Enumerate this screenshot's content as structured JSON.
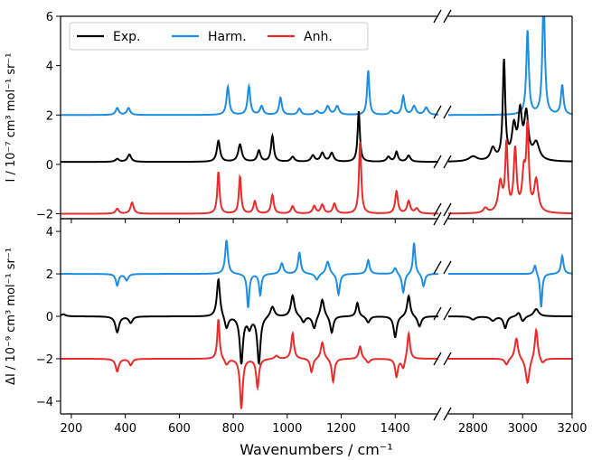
{
  "chart_data": [
    {
      "type": "line",
      "panel": "top",
      "ylabel": "I / 10⁻⁷ cm³ mol⁻¹ sr⁻¹",
      "ylim": [
        -2.2,
        6
      ],
      "yticks": [
        -2,
        0,
        2,
        4,
        6
      ],
      "xlabel": "",
      "xticks_low": [],
      "xticks_high": [],
      "legend": {
        "placement": "top-left",
        "entries": [
          "Exp.",
          "Harm.",
          "Anh."
        ]
      },
      "series": [
        {
          "name": "Harm.",
          "color": "#1f8ee0",
          "baseline": 2,
          "peaks": [
            [
              370,
              0.28,
              7
            ],
            [
              412,
              0.28,
              7
            ],
            [
              780,
              1.15,
              6
            ],
            [
              858,
              1.15,
              6
            ],
            [
              905,
              0.35,
              7
            ],
            [
              975,
              0.7,
              6
            ],
            [
              1045,
              0.25,
              7
            ],
            [
              1110,
              0.15,
              8
            ],
            [
              1150,
              0.35,
              8
            ],
            [
              1185,
              0.35,
              8
            ],
            [
              1300,
              1.8,
              5
            ],
            [
              1385,
              0.15,
              8
            ],
            [
              1430,
              0.75,
              6
            ],
            [
              1470,
              0.35,
              8
            ],
            [
              1515,
              0.3,
              8
            ],
            [
              3020,
              3.4,
              6
            ],
            [
              3085,
              4.8,
              6
            ],
            [
              3160,
              1.2,
              6
            ]
          ]
        },
        {
          "name": "Exp.",
          "color": "#000000",
          "baseline": 0.1,
          "peaks": [
            [
              370,
              0.12,
              8
            ],
            [
              415,
              0.3,
              8
            ],
            [
              745,
              0.85,
              7
            ],
            [
              825,
              0.7,
              8
            ],
            [
              895,
              0.45,
              7
            ],
            [
              945,
              1.05,
              6
            ],
            [
              1020,
              0.2,
              8
            ],
            [
              1095,
              0.25,
              8
            ],
            [
              1130,
              0.35,
              8
            ],
            [
              1165,
              0.35,
              8
            ],
            [
              1265,
              2.05,
              5
            ],
            [
              1375,
              0.2,
              8
            ],
            [
              1405,
              0.4,
              6
            ],
            [
              1450,
              0.25,
              8
            ],
            [
              2800,
              0.2,
              20
            ],
            [
              2880,
              0.5,
              12
            ],
            [
              2925,
              4.0,
              6
            ],
            [
              2965,
              1.3,
              10
            ],
            [
              2990,
              1.8,
              9
            ],
            [
              3015,
              1.8,
              10
            ],
            [
              3055,
              0.7,
              15
            ]
          ]
        },
        {
          "name": "Anh.",
          "color": "#e82c2c",
          "baseline": -2,
          "peaks": [
            [
              370,
              0.2,
              7
            ],
            [
              425,
              0.45,
              7
            ],
            [
              745,
              1.7,
              5
            ],
            [
              825,
              1.5,
              5
            ],
            [
              880,
              0.5,
              6
            ],
            [
              945,
              0.75,
              6
            ],
            [
              1020,
              0.3,
              7
            ],
            [
              1100,
              0.3,
              7
            ],
            [
              1130,
              0.35,
              7
            ],
            [
              1175,
              0.4,
              7
            ],
            [
              1270,
              2.9,
              5
            ],
            [
              1405,
              0.9,
              6
            ],
            [
              1450,
              0.5,
              7
            ],
            [
              1480,
              0.2,
              8
            ],
            [
              2850,
              0.2,
              10
            ],
            [
              2910,
              1.2,
              10
            ],
            [
              2935,
              2.7,
              6
            ],
            [
              2970,
              2.5,
              7
            ],
            [
              3005,
              1.5,
              8
            ],
            [
              3020,
              3.3,
              6
            ],
            [
              3055,
              1.3,
              10
            ]
          ]
        }
      ]
    },
    {
      "type": "line",
      "panel": "bottom",
      "ylabel": "ΔI / 10⁻⁹ cm³ mol⁻¹ sr⁻¹",
      "ylim": [
        -4.6,
        4.6
      ],
      "yticks": [
        -4,
        -2,
        0,
        2,
        4
      ],
      "xlabel": "Wavenumbers / cm⁻¹",
      "xticks_low": [
        200,
        400,
        600,
        800,
        1000,
        1200,
        1400
      ],
      "xticks_high": [
        2800,
        3000,
        3200
      ],
      "series": [
        {
          "name": "Harm.",
          "color": "#1f8ee0",
          "baseline": 2,
          "peaks": [
            [
              370,
              -0.55,
              6
            ],
            [
              405,
              -0.3,
              7
            ],
            [
              775,
              1.6,
              6
            ],
            [
              855,
              -1.6,
              5
            ],
            [
              900,
              -1.0,
              5
            ],
            [
              980,
              0.5,
              7
            ],
            [
              1045,
              1.0,
              6
            ],
            [
              1110,
              -0.3,
              8
            ],
            [
              1150,
              0.6,
              8
            ],
            [
              1190,
              -1.0,
              6
            ],
            [
              1300,
              0.65,
              6
            ],
            [
              1400,
              0.3,
              7
            ],
            [
              1430,
              -0.9,
              6
            ],
            [
              1470,
              1.5,
              5
            ],
            [
              1505,
              -0.6,
              6
            ],
            [
              3050,
              0.45,
              6
            ],
            [
              3075,
              -1.6,
              5
            ],
            [
              3160,
              0.85,
              6
            ]
          ]
        },
        {
          "name": "Exp.",
          "color": "#000000",
          "baseline": 0,
          "peaks": [
            [
              170,
              0.1,
              10
            ],
            [
              370,
              -0.75,
              8
            ],
            [
              420,
              -0.3,
              8
            ],
            [
              745,
              1.8,
              7
            ],
            [
              775,
              -0.6,
              8
            ],
            [
              830,
              -2.2,
              7
            ],
            [
              860,
              -0.5,
              8
            ],
            [
              895,
              -2.2,
              7
            ],
            [
              945,
              0.5,
              9
            ],
            [
              1020,
              1.0,
              8
            ],
            [
              1060,
              -0.3,
              8
            ],
            [
              1100,
              -0.6,
              8
            ],
            [
              1130,
              0.85,
              8
            ],
            [
              1165,
              -0.8,
              7
            ],
            [
              1260,
              0.65,
              6
            ],
            [
              1300,
              -0.3,
              8
            ],
            [
              1400,
              -1.0,
              7
            ],
            [
              1450,
              1.0,
              7
            ],
            [
              1490,
              -0.5,
              8
            ],
            [
              2800,
              -0.15,
              12
            ],
            [
              2880,
              -0.2,
              12
            ],
            [
              2930,
              -0.55,
              8
            ],
            [
              2985,
              0.25,
              10
            ],
            [
              3000,
              -0.3,
              10
            ],
            [
              3055,
              0.35,
              12
            ]
          ]
        },
        {
          "name": "Anh.",
          "color": "#e82c2c",
          "baseline": -2,
          "peaks": [
            [
              370,
              -0.6,
              7
            ],
            [
              420,
              -0.3,
              7
            ],
            [
              745,
              1.9,
              5
            ],
            [
              775,
              -0.3,
              8
            ],
            [
              830,
              -2.35,
              6
            ],
            [
              890,
              -1.35,
              6
            ],
            [
              960,
              0.15,
              8
            ],
            [
              1020,
              1.2,
              6
            ],
            [
              1090,
              -0.65,
              6
            ],
            [
              1130,
              0.8,
              7
            ],
            [
              1170,
              -1.1,
              6
            ],
            [
              1270,
              0.6,
              6
            ],
            [
              1300,
              -0.2,
              8
            ],
            [
              1405,
              -0.85,
              6
            ],
            [
              1430,
              -0.5,
              7
            ],
            [
              1450,
              1.25,
              6
            ],
            [
              2935,
              -0.3,
              8
            ],
            [
              2975,
              1.0,
              8
            ],
            [
              3020,
              -1.2,
              9
            ],
            [
              3055,
              1.45,
              7
            ],
            [
              3080,
              -0.25,
              10
            ]
          ]
        }
      ]
    }
  ]
}
